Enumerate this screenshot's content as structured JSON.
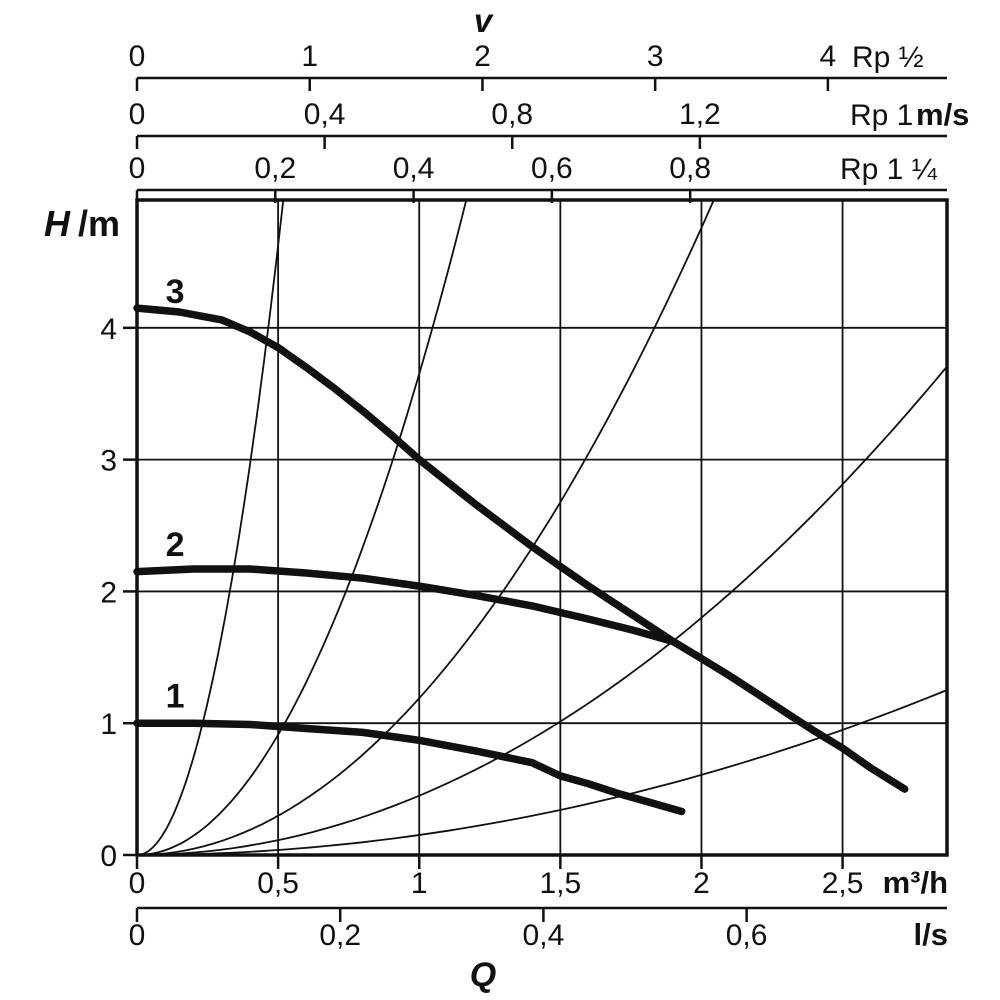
{
  "page": {
    "background": "#ffffff",
    "foreground": "#111111"
  },
  "chart_data": {
    "type": "line",
    "description": "Circulator pump performance chart: head H (m) versus flow Q, with three speed-setting pump curves (1, 2, 3), thin system parabolas, pipe velocity scales for Rp ½ / Rp 1 / Rp 1 ¼, and flow scales in m³/h and l/s.",
    "top_velocity_title": "v",
    "y_axis": {
      "label_main": "H",
      "label_unit": "/m",
      "min": 0,
      "max": 4.97,
      "ticks": [
        {
          "v": 0,
          "label": "0"
        },
        {
          "v": 1,
          "label": "1"
        },
        {
          "v": 2,
          "label": "2"
        },
        {
          "v": 3,
          "label": "3"
        },
        {
          "v": 4,
          "label": "4"
        }
      ]
    },
    "x_axis_main": {
      "unit": "m³/h",
      "min": 0,
      "max": 2.87,
      "ticks": [
        {
          "v": 0,
          "label": "0"
        },
        {
          "v": 0.5,
          "label": "0,5"
        },
        {
          "v": 1,
          "label": "1"
        },
        {
          "v": 1.5,
          "label": "1,5"
        },
        {
          "v": 2,
          "label": "2"
        },
        {
          "v": 2.5,
          "label": "2,5"
        }
      ]
    },
    "x_axis_ls": {
      "unit": "l/s",
      "q_per_unit": 3.6,
      "ticks": [
        {
          "v": 0,
          "label": "0"
        },
        {
          "v": 0.2,
          "label": "0,2"
        },
        {
          "v": 0.4,
          "label": "0,4"
        },
        {
          "v": 0.6,
          "label": "0,6"
        }
      ]
    },
    "x_axis_q_label": "Q",
    "top_axes": [
      {
        "name": "Rp ½",
        "unit": "",
        "q_per_unit": 0.612,
        "ticks": [
          {
            "v": 0,
            "label": "0"
          },
          {
            "v": 1,
            "label": "1"
          },
          {
            "v": 2,
            "label": "2"
          },
          {
            "v": 3,
            "label": "3"
          },
          {
            "v": 4,
            "label": "4"
          }
        ]
      },
      {
        "name": "Rp 1",
        "unit": "m/s",
        "q_per_unit": 1.662,
        "ticks": [
          {
            "v": 0,
            "label": "0"
          },
          {
            "v": 0.4,
            "label": "0,4"
          },
          {
            "v": 0.8,
            "label": "0,8"
          },
          {
            "v": 1.2,
            "label": "1,2"
          }
        ]
      },
      {
        "name": "Rp 1 ¼",
        "unit": "",
        "q_per_unit": 2.45,
        "ticks": [
          {
            "v": 0,
            "label": "0"
          },
          {
            "v": 0.2,
            "label": "0,2"
          },
          {
            "v": 0.4,
            "label": "0,4"
          },
          {
            "v": 0.6,
            "label": "0,6"
          },
          {
            "v": 0.8,
            "label": "0,8"
          }
        ]
      }
    ],
    "grid": {
      "x_lines": [
        0.5,
        1,
        1.5,
        2,
        2.5
      ],
      "y_lines": [
        1,
        2,
        3,
        4
      ]
    },
    "pump_curves": [
      {
        "label": "1",
        "label_at": {
          "q": 0.135,
          "h": 1.12
        },
        "points": [
          [
            0,
            1.0
          ],
          [
            0.2,
            1.0
          ],
          [
            0.4,
            0.99
          ],
          [
            0.6,
            0.96
          ],
          [
            0.8,
            0.93
          ],
          [
            1.0,
            0.87
          ],
          [
            1.2,
            0.79
          ],
          [
            1.4,
            0.7
          ],
          [
            1.5,
            0.6
          ],
          [
            1.6,
            0.54
          ],
          [
            1.7,
            0.47
          ],
          [
            1.8,
            0.41
          ],
          [
            1.93,
            0.33
          ]
        ]
      },
      {
        "label": "2",
        "label_at": {
          "q": 0.135,
          "h": 2.27
        },
        "points": [
          [
            0,
            2.15
          ],
          [
            0.2,
            2.17
          ],
          [
            0.4,
            2.17
          ],
          [
            0.6,
            2.14
          ],
          [
            0.8,
            2.1
          ],
          [
            1.0,
            2.04
          ],
          [
            1.2,
            1.97
          ],
          [
            1.4,
            1.89
          ],
          [
            1.6,
            1.79
          ],
          [
            1.75,
            1.71
          ],
          [
            1.9,
            1.62
          ]
        ]
      },
      {
        "label": "3",
        "label_at": {
          "q": 0.135,
          "h": 4.19
        },
        "points": [
          [
            0,
            4.15
          ],
          [
            0.15,
            4.12
          ],
          [
            0.3,
            4.06
          ],
          [
            0.4,
            3.97
          ],
          [
            0.5,
            3.85
          ],
          [
            0.6,
            3.7
          ],
          [
            0.7,
            3.54
          ],
          [
            0.8,
            3.37
          ],
          [
            0.9,
            3.19
          ],
          [
            1.0,
            3.0
          ],
          [
            1.1,
            2.83
          ],
          [
            1.2,
            2.66
          ],
          [
            1.3,
            2.5
          ],
          [
            1.4,
            2.34
          ],
          [
            1.5,
            2.19
          ],
          [
            1.6,
            2.04
          ],
          [
            1.7,
            1.9
          ],
          [
            1.8,
            1.76
          ],
          [
            1.9,
            1.62
          ],
          [
            2.0,
            1.49
          ],
          [
            2.1,
            1.36
          ],
          [
            2.2,
            1.22
          ],
          [
            2.3,
            1.08
          ],
          [
            2.4,
            0.94
          ],
          [
            2.5,
            0.81
          ],
          [
            2.6,
            0.66
          ],
          [
            2.72,
            0.5
          ]
        ]
      }
    ],
    "system_curves": {
      "model": "H = k · Q²",
      "k_values": [
        18.5,
        3.65,
        1.19,
        0.45,
        0.152
      ]
    },
    "colors": {
      "line": "#111111",
      "background": "#ffffff"
    }
  }
}
